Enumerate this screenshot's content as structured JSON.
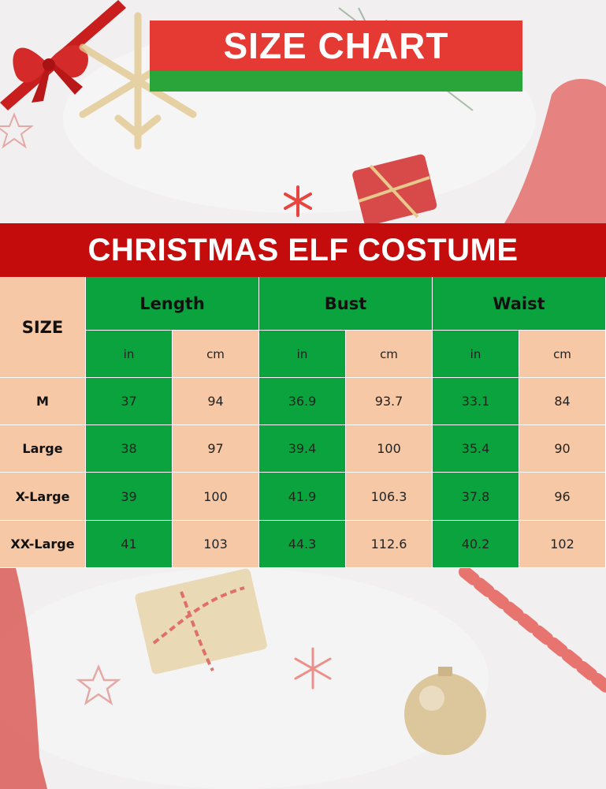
{
  "banner": {
    "title": "SIZE CHART"
  },
  "table_title": "CHRISTMAS ELF COSTUME",
  "table": {
    "size_header": "SIZE",
    "groups": [
      "Length",
      "Bust",
      "Waist"
    ],
    "units": [
      "in",
      "cm",
      "in",
      "cm",
      "in",
      "cm"
    ],
    "rows": [
      {
        "size": "M",
        "values": [
          "37",
          "94",
          "36.9",
          "93.7",
          "33.1",
          "84"
        ]
      },
      {
        "size": "Large",
        "values": [
          "38",
          "97",
          "39.4",
          "100",
          "35.4",
          "90"
        ]
      },
      {
        "size": "X-Large",
        "values": [
          "39",
          "100",
          "41.9",
          "106.3",
          "37.8",
          "96"
        ]
      },
      {
        "size": "XX-Large",
        "values": [
          "41",
          "103",
          "44.3",
          "112.6",
          "40.2",
          "102"
        ]
      }
    ]
  },
  "colors": {
    "banner_red": "#e53a34",
    "banner_green": "#2aa53a",
    "title_red": "#c50c0c",
    "cell_green": "#0aa33d",
    "cell_peach": "#f7c8a6"
  }
}
